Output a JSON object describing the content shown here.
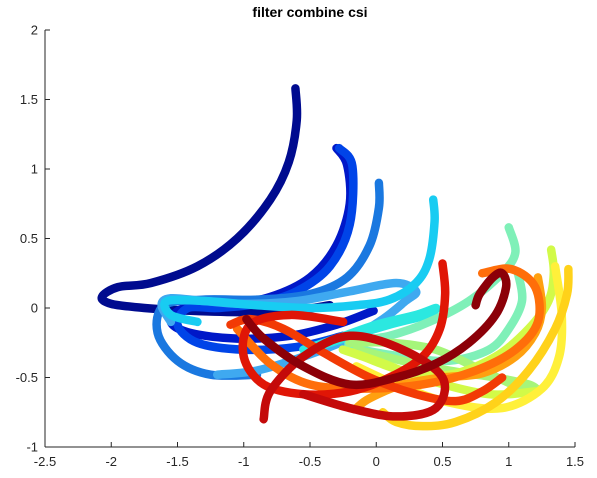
{
  "chart_data": {
    "type": "line",
    "title": "filter combine csi",
    "xlabel": "",
    "ylabel": "",
    "xlim": [
      -2.5,
      1.5
    ],
    "ylim": [
      -1,
      2
    ],
    "xticks": [
      -2.5,
      -2,
      -1.5,
      -1,
      -0.5,
      0,
      0.5,
      1,
      1.5
    ],
    "yticks": [
      -1,
      -0.5,
      0,
      0.5,
      1,
      1.5,
      2
    ],
    "xtick_labels": [
      "-2.5",
      "-2",
      "-1.5",
      "-1",
      "-0.5",
      "0",
      "0.5",
      "1",
      "1.5"
    ],
    "ytick_labels": [
      "-1",
      "-0.5",
      "0",
      "0.5",
      "1",
      "1.5",
      "2"
    ],
    "grid": false,
    "box": "left-bottom",
    "series": [
      {
        "color": "#000b8f",
        "x": [
          -0.61,
          -0.6,
          -0.66,
          -0.8,
          -1.05,
          -1.35,
          -1.7,
          -1.95,
          -2.07,
          -2.0,
          -1.75,
          -1.4,
          -1.0,
          -0.65,
          -0.35
        ],
        "y": [
          1.58,
          1.35,
          1.05,
          0.78,
          0.5,
          0.3,
          0.18,
          0.15,
          0.08,
          0.03,
          0.0,
          -0.02,
          -0.03,
          -0.02,
          0.02
        ]
      },
      {
        "color": "#0018c8",
        "x": [
          -0.3,
          -0.22,
          -0.2,
          -0.3,
          -0.5,
          -0.8,
          -1.15,
          -1.45,
          -1.55,
          -1.4,
          -1.05,
          -0.65,
          -0.3,
          -0.02
        ],
        "y": [
          1.15,
          1.03,
          0.75,
          0.45,
          0.22,
          0.08,
          0.02,
          0.0,
          -0.1,
          -0.18,
          -0.22,
          -0.2,
          -0.12,
          -0.02
        ]
      },
      {
        "color": "#0044e8",
        "x": [
          -0.28,
          -0.18,
          -0.2,
          -0.35,
          -0.6,
          -0.9,
          -1.2,
          -1.42,
          -1.5,
          -1.35,
          -1.0,
          -0.6,
          -0.25
        ],
        "y": [
          1.15,
          1.02,
          0.6,
          0.3,
          0.12,
          0.03,
          0.0,
          0.0,
          -0.12,
          -0.25,
          -0.3,
          -0.28,
          -0.2
        ]
      },
      {
        "color": "#1a78e0",
        "x": [
          0.02,
          0.02,
          -0.05,
          -0.22,
          -0.5,
          -0.9,
          -1.3,
          -1.6,
          -1.65,
          -1.5,
          -1.25,
          -0.9
        ],
        "y": [
          0.9,
          0.72,
          0.45,
          0.22,
          0.1,
          0.06,
          0.06,
          0.02,
          -0.18,
          -0.38,
          -0.48,
          -0.48
        ]
      },
      {
        "color": "#3fa9f0",
        "x": [
          -1.2,
          -0.9,
          -0.55,
          -0.2,
          0.05,
          0.22,
          0.3,
          0.15,
          -0.2,
          -0.6,
          -1.0,
          -1.3,
          -1.55,
          -1.62,
          -1.55
        ],
        "y": [
          -0.48,
          -0.45,
          -0.35,
          -0.22,
          -0.08,
          0.05,
          0.12,
          0.18,
          0.12,
          0.05,
          0.03,
          0.05,
          0.07,
          0.02,
          -0.1
        ]
      },
      {
        "color": "#18ccf2",
        "x": [
          0.43,
          0.44,
          0.4,
          0.3,
          0.1,
          -0.15,
          -0.5,
          -0.9,
          -1.3,
          -1.58,
          -1.55,
          -1.35
        ],
        "y": [
          0.78,
          0.62,
          0.35,
          0.18,
          0.06,
          0.02,
          0.0,
          0.02,
          0.05,
          0.05,
          -0.05,
          -0.1
        ]
      },
      {
        "color": "#2be8e0",
        "x": [
          -0.55,
          -0.3,
          0.0,
          0.3,
          0.45,
          0.38,
          0.1,
          -0.25,
          -0.5
        ],
        "y": [
          -0.3,
          -0.22,
          -0.12,
          -0.05,
          0.0,
          -0.05,
          -0.12,
          -0.22,
          -0.3
        ]
      },
      {
        "color": "#7ff0b8",
        "x": [
          1.0,
          1.05,
          0.95,
          0.7,
          0.4,
          0.1,
          -0.2,
          -0.1,
          0.2,
          0.55,
          0.85,
          1.0,
          1.1,
          1.07
        ],
        "y": [
          0.58,
          0.4,
          0.25,
          0.05,
          -0.1,
          -0.2,
          -0.25,
          -0.3,
          -0.35,
          -0.38,
          -0.3,
          -0.15,
          0.05,
          0.25
        ]
      },
      {
        "color": "#a6f57a",
        "x": [
          -0.2,
          0.1,
          0.45,
          0.8,
          1.1,
          1.22,
          1.15,
          0.9,
          0.55,
          0.2,
          -0.15
        ],
        "y": [
          -0.25,
          -0.25,
          -0.3,
          -0.45,
          -0.58,
          -0.6,
          -0.55,
          -0.5,
          -0.45,
          -0.38,
          -0.3
        ]
      },
      {
        "color": "#d2fa48",
        "x": [
          1.32,
          1.34,
          1.3,
          1.15,
          0.9,
          0.55,
          0.2,
          -0.1,
          -0.25,
          0.0,
          0.4,
          0.85,
          1.2
        ],
        "y": [
          0.42,
          0.25,
          0.05,
          -0.15,
          -0.35,
          -0.48,
          -0.45,
          -0.35,
          -0.3,
          -0.38,
          -0.52,
          -0.62,
          -0.6
        ]
      },
      {
        "color": "#fff03a",
        "x": [
          -0.15,
          0.15,
          0.55,
          0.95,
          1.25,
          1.38,
          1.4,
          1.35
        ],
        "y": [
          -0.42,
          -0.55,
          -0.68,
          -0.72,
          -0.58,
          -0.35,
          -0.05,
          0.3
        ]
      },
      {
        "color": "#ffd21a",
        "x": [
          1.45,
          1.44,
          1.35,
          1.15,
          0.9,
          0.6,
          0.35,
          0.15,
          0.05
        ],
        "y": [
          0.28,
          0.1,
          -0.15,
          -0.45,
          -0.68,
          -0.82,
          -0.85,
          -0.82,
          -0.75
        ]
      },
      {
        "color": "#ffa010",
        "x": [
          1.22,
          1.25,
          1.2,
          1.05,
          0.8,
          0.5,
          0.2,
          -0.05,
          -0.15
        ],
        "y": [
          0.22,
          0.0,
          -0.18,
          -0.35,
          -0.47,
          -0.5,
          -0.55,
          -0.65,
          -0.72
        ]
      },
      {
        "color": "#ff6e0a",
        "x": [
          -1.05,
          -0.8,
          -0.5,
          -0.1,
          0.35,
          0.75,
          1.05,
          1.22,
          1.2,
          1.02,
          0.8
        ],
        "y": [
          -0.15,
          -0.4,
          -0.55,
          -0.58,
          -0.55,
          -0.45,
          -0.3,
          -0.1,
          0.15,
          0.28,
          0.25
        ]
      },
      {
        "color": "#f23a05",
        "x": [
          -1.1,
          -0.95,
          -0.7,
          -0.4,
          -0.05,
          0.3,
          0.6,
          0.8,
          0.95
        ],
        "y": [
          -0.12,
          -0.08,
          -0.15,
          -0.32,
          -0.5,
          -0.62,
          -0.67,
          -0.6,
          -0.5
        ]
      },
      {
        "color": "#e01606",
        "x": [
          0.5,
          0.52,
          0.48,
          0.35,
          0.1,
          -0.2,
          -0.55,
          -0.85,
          -1.0,
          -0.95,
          -0.65,
          -0.25
        ],
        "y": [
          0.32,
          0.1,
          -0.15,
          -0.35,
          -0.5,
          -0.6,
          -0.62,
          -0.55,
          -0.35,
          -0.12,
          -0.05,
          -0.1
        ]
      },
      {
        "color": "#c40a0a",
        "x": [
          -0.85,
          -0.8,
          -0.55,
          -0.2,
          0.2,
          0.5,
          0.45,
          0.15,
          -0.2,
          -0.55
        ],
        "y": [
          -0.8,
          -0.6,
          -0.35,
          -0.2,
          -0.3,
          -0.5,
          -0.72,
          -0.78,
          -0.72,
          -0.62
        ]
      },
      {
        "color": "#8c0008",
        "x": [
          0.75,
          0.78,
          0.88,
          0.95,
          0.98,
          0.9,
          0.7,
          0.45,
          0.15,
          -0.2,
          -0.55,
          -0.85,
          -0.98
        ],
        "y": [
          0.02,
          0.1,
          0.22,
          0.25,
          0.15,
          -0.05,
          -0.25,
          -0.4,
          -0.5,
          -0.55,
          -0.42,
          -0.22,
          -0.08
        ]
      }
    ]
  }
}
